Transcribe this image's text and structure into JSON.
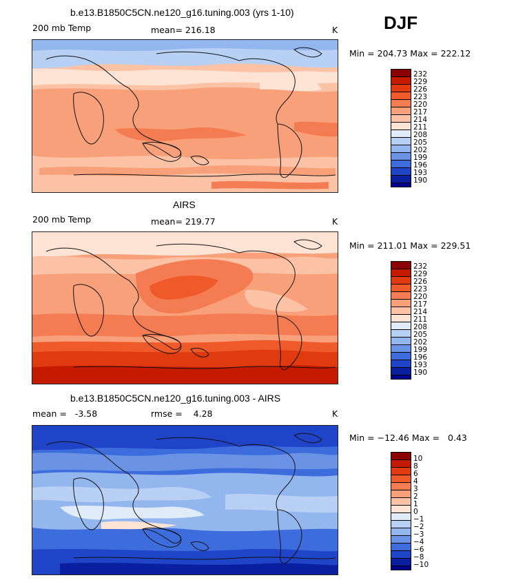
{
  "season": "DJF",
  "panels": [
    {
      "title": "b.e13.B1850C5CN.ne120_g16.tuning.003 (yrs 1-10)",
      "left_label": "200 mb Temp",
      "center_label": "mean= 216.18",
      "units": "K",
      "minmax": "Min = 204.73 Max = 222.12",
      "colorbar": [
        "232",
        "229",
        "226",
        "223",
        "220",
        "217",
        "214",
        "211",
        "208",
        "205",
        "202",
        "199",
        "196",
        "193",
        "190"
      ]
    },
    {
      "title": "AIRS",
      "left_label": "200 mb Temp",
      "center_label": "mean= 219.77",
      "units": "K",
      "minmax": "Min = 211.01 Max = 229.51",
      "colorbar": [
        "232",
        "229",
        "226",
        "223",
        "220",
        "217",
        "214",
        "211",
        "208",
        "205",
        "202",
        "199",
        "196",
        "193",
        "190"
      ]
    },
    {
      "title": "b.e13.B1850C5CN.ne120_g16.tuning.003 - AIRS",
      "left_label": "mean =   -3.58",
      "center_label": "rmse =    4.28",
      "units": "K",
      "minmax": "Min = −12.46 Max =   0.43",
      "colorbar": [
        "10",
        "8",
        "6",
        "4",
        "3",
        "2",
        "1",
        "0",
        "−1",
        "−2",
        "−3",
        "−4",
        "−6",
        "−8",
        "−10"
      ]
    }
  ],
  "colors": {
    "scale": [
      "#8b0000",
      "#c41a00",
      "#e03a10",
      "#ee5a2a",
      "#f47c52",
      "#f8a07a",
      "#fbc2a6",
      "#fde3d4",
      "#e0ebf8",
      "#b8d0f3",
      "#93b6ef",
      "#6a93e6",
      "#3d6cdc",
      "#1f44c8",
      "#0a1ea0",
      "#00008c"
    ]
  }
}
